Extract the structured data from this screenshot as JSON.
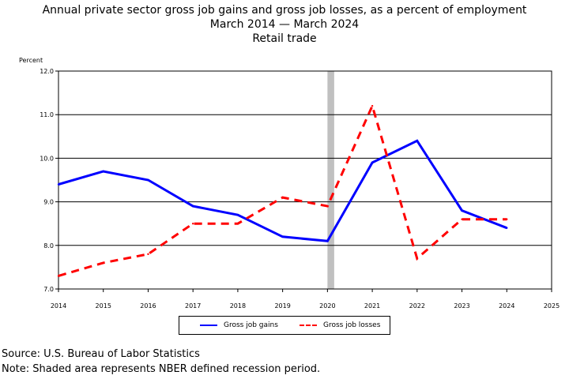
{
  "header": {
    "title_line1": "Annual private sector gross job gains and gross job losses, as a percent of employment",
    "title_line2": "March 2014 — March 2024",
    "title_line3": "Retail trade"
  },
  "footer": {
    "source": "Source: U.S. Bureau of Labor Statistics",
    "note": "Note: Shaded area represents NBER defined recession period."
  },
  "colors": {
    "gains": "#0000ff",
    "losses": "#ff0000",
    "recession": "#c0c0c0"
  },
  "chart_data": {
    "type": "line",
    "title": "Annual private sector gross job gains and gross job losses, as a percent of employment",
    "subtitle": "March 2014 — March 2024",
    "category": "Retail trade",
    "ylabel": "Percent",
    "xlabel": "",
    "xlim": [
      2014,
      2025
    ],
    "ylim": [
      7.0,
      12.0
    ],
    "xticks": [
      "2014",
      "2015",
      "2016",
      "2017",
      "2018",
      "2019",
      "2020",
      "2021",
      "2022",
      "2023",
      "2024",
      "2025"
    ],
    "yticks": [
      "7.0",
      "8.0",
      "9.0",
      "10.0",
      "11.0",
      "12.0"
    ],
    "grid": "horizontal",
    "legend_position": "bottom",
    "recession_period": [
      2020.0,
      2020.15
    ],
    "series": [
      {
        "name": "Gross job gains",
        "style": "solid",
        "color": "#0000ff",
        "x": [
          2014,
          2015,
          2016,
          2017,
          2018,
          2019,
          2020,
          2021,
          2022,
          2023,
          2024
        ],
        "values": [
          9.4,
          9.7,
          9.5,
          8.9,
          8.7,
          8.2,
          8.1,
          9.9,
          10.4,
          8.8,
          8.4
        ]
      },
      {
        "name": "Gross job losses",
        "style": "dashed",
        "color": "#ff0000",
        "x": [
          2014,
          2015,
          2016,
          2017,
          2018,
          2019,
          2020,
          2021,
          2022,
          2023,
          2024
        ],
        "values": [
          7.3,
          7.6,
          7.8,
          8.5,
          8.5,
          9.1,
          8.9,
          11.2,
          7.7,
          8.6,
          8.6
        ]
      }
    ]
  }
}
